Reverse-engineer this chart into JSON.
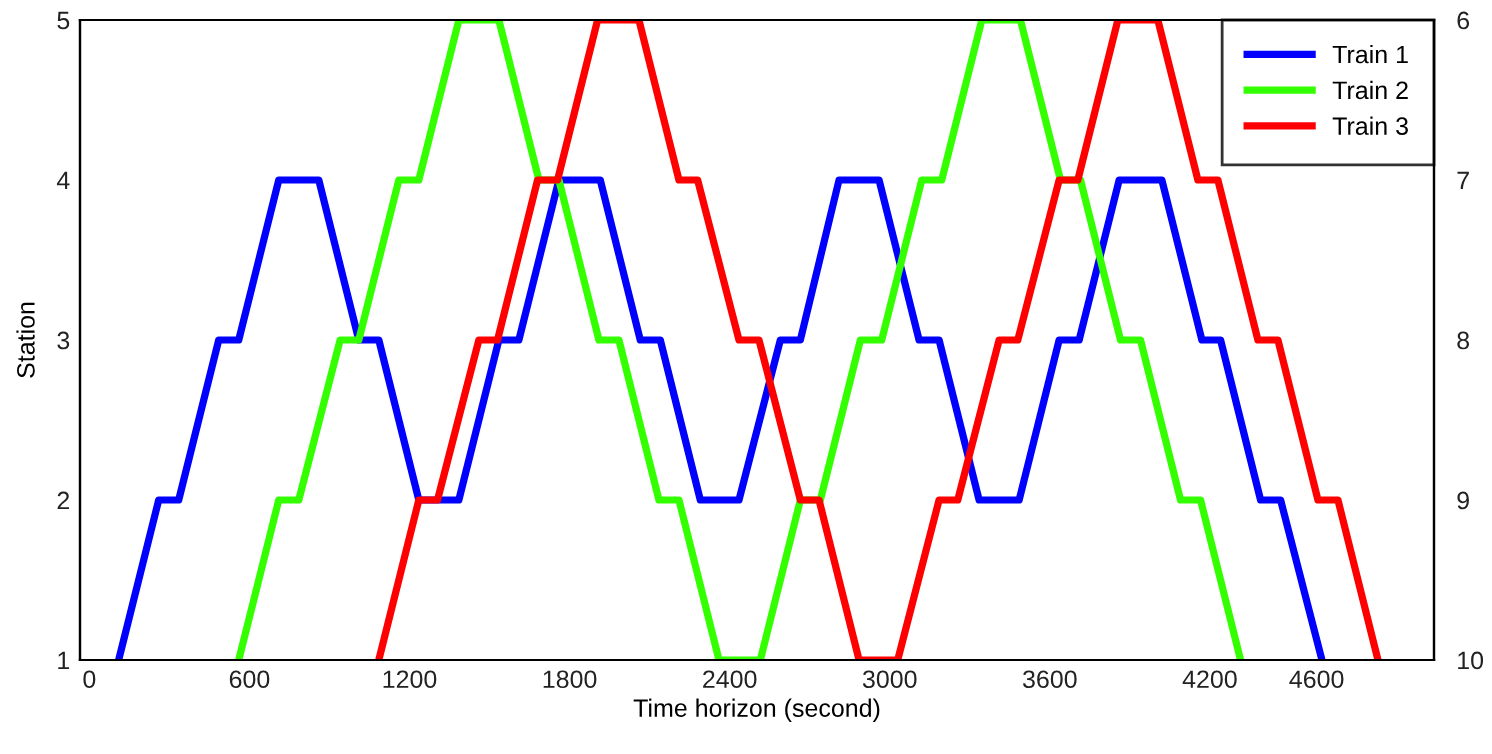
{
  "chart_data": {
    "type": "line",
    "xlabel": "Time horizon (second)",
    "ylabel": "Station",
    "xlim": [
      -35,
      5040
    ],
    "xticks": [
      0,
      600,
      1200,
      1800,
      2400,
      3000,
      3600,
      4200,
      4600
    ],
    "ylim": [
      1,
      5
    ],
    "yticks": [
      1,
      2,
      3,
      4,
      5
    ],
    "y2lim": [
      10,
      6
    ],
    "y2ticks": [
      6,
      7,
      8,
      9,
      10
    ],
    "grid": false,
    "legend": "top right",
    "marker": "none",
    "line_style": "solid",
    "series": [
      {
        "name": "Train 1",
        "color": "#0000ff",
        "x": [
          110,
          260,
          335,
          485,
          560,
          710,
          860,
          1010,
          1085,
          1235,
          1385,
          1535,
          1610,
          1760,
          1915,
          2065,
          2140,
          2290,
          2435,
          2590,
          2665,
          2810,
          2960,
          3110,
          3185,
          3335,
          3485,
          3635,
          3710,
          3860,
          4020,
          4170,
          4240,
          4390,
          4465,
          4620
        ],
        "values": [
          1,
          2,
          2,
          3,
          3,
          4,
          4,
          3,
          3,
          2,
          2,
          3,
          3,
          4,
          4,
          3,
          3,
          2,
          2,
          3,
          3,
          4,
          4,
          3,
          3,
          2,
          2,
          3,
          3,
          4,
          4,
          3,
          3,
          2,
          2,
          1
        ]
      },
      {
        "name": "Train 2",
        "color": "#33ff00",
        "x": [
          560,
          710,
          785,
          940,
          1010,
          1160,
          1235,
          1385,
          1535,
          1685,
          1760,
          1910,
          1985,
          2135,
          2210,
          2360,
          2515,
          2665,
          2740,
          2890,
          2970,
          3120,
          3195,
          3345,
          3490,
          3640,
          3715,
          3865,
          3940,
          4090,
          4165,
          4315
        ],
        "values": [
          1,
          2,
          2,
          3,
          3,
          4,
          4,
          5,
          5,
          4,
          4,
          3,
          3,
          2,
          2,
          1,
          1,
          2,
          2,
          3,
          3,
          4,
          4,
          5,
          5,
          4,
          4,
          3,
          3,
          2,
          2,
          1
        ]
      },
      {
        "name": "Train 3",
        "color": "#ff0000",
        "x": [
          1085,
          1235,
          1305,
          1460,
          1530,
          1680,
          1755,
          1905,
          2060,
          2210,
          2280,
          2435,
          2510,
          2665,
          2735,
          2885,
          3030,
          3185,
          3255,
          3410,
          3480,
          3635,
          3705,
          3855,
          4005,
          4155,
          4230,
          4380,
          4455,
          4605,
          4680,
          4830
        ],
        "values": [
          1,
          2,
          2,
          3,
          3,
          4,
          4,
          5,
          5,
          4,
          4,
          3,
          3,
          2,
          2,
          1,
          1,
          2,
          2,
          3,
          3,
          4,
          4,
          5,
          5,
          4,
          4,
          3,
          3,
          2,
          2,
          1
        ]
      }
    ]
  }
}
